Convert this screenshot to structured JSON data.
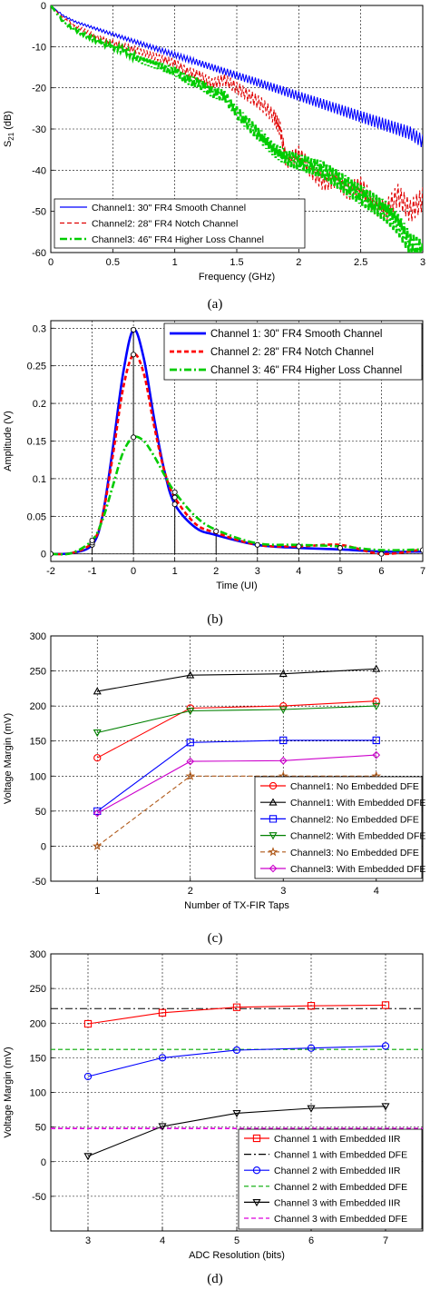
{
  "chart_data": [
    {
      "type": "line",
      "caption": "(a)",
      "xlabel": "Frequency (GHz)",
      "ylabel": "S21 (dB)",
      "ylabel_main": "S",
      "ylabel_sub": "21",
      "ylabel_unit": " (dB)",
      "xlim": [
        0,
        3
      ],
      "ylim": [
        -60,
        0
      ],
      "xticks": [
        "0",
        "0.5",
        "1",
        "1.5",
        "2",
        "2.5",
        "3"
      ],
      "yticks": [
        "0",
        "-10",
        "-20",
        "-30",
        "-40",
        "-50",
        "-60"
      ],
      "grid": true,
      "legend_position": "bottom-left",
      "series": [
        {
          "name": "Channel1: 30\" FR4 Smooth Channel",
          "color": "#0000ff",
          "style": "solid",
          "x": [
            0,
            0.1,
            0.2,
            0.3,
            0.4,
            0.5,
            0.6,
            0.7,
            0.8,
            0.9,
            1.0,
            1.1,
            1.2,
            1.3,
            1.4,
            1.5,
            1.6,
            1.7,
            1.8,
            1.9,
            2.0,
            2.1,
            2.2,
            2.3,
            2.4,
            2.5,
            2.6,
            2.7,
            2.8,
            2.9,
            3.0
          ],
          "y": [
            0,
            -2.5,
            -4,
            -5,
            -6,
            -7,
            -8,
            -9,
            -10,
            -11,
            -12,
            -13,
            -14,
            -15,
            -16,
            -17,
            -18,
            -19,
            -20,
            -21,
            -22,
            -23,
            -24,
            -25,
            -26,
            -27,
            -28,
            -29,
            -30,
            -31,
            -33
          ]
        },
        {
          "name": "Channel2: 28\" FR4 Notch Channel",
          "color": "#e00000",
          "style": "dashed",
          "x": [
            0,
            0.1,
            0.2,
            0.3,
            0.4,
            0.5,
            0.6,
            0.7,
            0.8,
            0.9,
            1.0,
            1.1,
            1.2,
            1.3,
            1.4,
            1.5,
            1.6,
            1.7,
            1.8,
            1.85,
            1.9,
            2.0,
            2.1,
            2.2,
            2.3,
            2.4,
            2.5,
            2.6,
            2.7,
            2.8,
            2.9,
            3.0
          ],
          "y": [
            0,
            -3,
            -5,
            -6.5,
            -8,
            -9,
            -10,
            -11,
            -12,
            -13,
            -14,
            -16,
            -17,
            -19,
            -18,
            -20,
            -22,
            -24,
            -27,
            -30,
            -38,
            -36,
            -40,
            -43,
            -42,
            -45,
            -44,
            -48,
            -50,
            -46,
            -50,
            -47
          ]
        },
        {
          "name": "Channel3: 46\" FR4 Higher Loss Channel",
          "color": "#00cc00",
          "style": "dashdot",
          "x": [
            0,
            0.1,
            0.2,
            0.3,
            0.4,
            0.5,
            0.6,
            0.7,
            0.8,
            0.9,
            1.0,
            1.1,
            1.2,
            1.3,
            1.4,
            1.5,
            1.6,
            1.7,
            1.8,
            1.9,
            2.0,
            2.1,
            2.2,
            2.3,
            2.4,
            2.5,
            2.6,
            2.7,
            2.8,
            2.9,
            3.0
          ],
          "y": [
            0,
            -4,
            -6,
            -7.5,
            -9,
            -10,
            -11,
            -13,
            -14,
            -15,
            -16,
            -18,
            -19,
            -21,
            -22,
            -26,
            -29,
            -32,
            -35,
            -37,
            -38,
            -39,
            -40,
            -42,
            -44,
            -46,
            -48,
            -50,
            -53,
            -58,
            -60
          ]
        }
      ]
    },
    {
      "type": "line",
      "caption": "(b)",
      "xlabel": "Time (UI)",
      "ylabel": "Amplitude (V)",
      "xlim": [
        -2,
        7
      ],
      "ylim": [
        -0.01,
        0.31
      ],
      "xticks": [
        "-2",
        "-1",
        "0",
        "1",
        "2",
        "3",
        "4",
        "5",
        "6",
        "7"
      ],
      "yticks": [
        "0",
        "0.05",
        "0.1",
        "0.15",
        "0.2",
        "0.25",
        "0.3"
      ],
      "grid": true,
      "legend_position": "top-right",
      "series": [
        {
          "name": "Channel 1: 30\" FR4 Smooth Channel",
          "color": "#0000ff",
          "style": "solid",
          "x": [
            -2,
            -1.5,
            -1,
            -0.75,
            -0.5,
            -0.25,
            0,
            0.25,
            0.5,
            0.75,
            1,
            1.5,
            2,
            3,
            4,
            5,
            6,
            7
          ],
          "y": [
            0,
            0.001,
            0.012,
            0.05,
            0.14,
            0.24,
            0.298,
            0.26,
            0.18,
            0.11,
            0.066,
            0.035,
            0.025,
            0.012,
            0.008,
            0.006,
            0.003,
            0.003
          ]
        },
        {
          "name": "Channel 2: 28\" FR4 Notch Channel",
          "color": "#ff0000",
          "style": "dashed",
          "x": [
            -2,
            -1.5,
            -1,
            -0.75,
            -0.5,
            -0.25,
            0,
            0.25,
            0.5,
            0.75,
            1,
            1.5,
            2,
            3,
            4,
            5,
            6,
            7
          ],
          "y": [
            0,
            0.001,
            0.015,
            0.05,
            0.13,
            0.22,
            0.265,
            0.24,
            0.17,
            0.11,
            0.075,
            0.04,
            0.028,
            0.012,
            0.01,
            0.012,
            0.0,
            0.006
          ]
        },
        {
          "name": "Channel 3: 46\" FR4 Higher Loss Channel",
          "color": "#00cc00",
          "style": "dashdot",
          "x": [
            -2,
            -1.5,
            -1,
            -0.75,
            -0.5,
            -0.25,
            0,
            0.25,
            0.5,
            0.75,
            1,
            1.5,
            2,
            3,
            4,
            5,
            6,
            7
          ],
          "y": [
            0,
            0.001,
            0.018,
            0.045,
            0.09,
            0.135,
            0.155,
            0.15,
            0.13,
            0.105,
            0.082,
            0.05,
            0.032,
            0.014,
            0.012,
            0.01,
            0.005,
            0.006
          ]
        }
      ],
      "cursors": [
        {
          "x": -1,
          "y": 0.015
        },
        {
          "x": 0,
          "y": 0.298
        },
        {
          "x": 1,
          "y": 0.082
        },
        {
          "x": 2,
          "y": 0.03
        },
        {
          "x": 3,
          "y": 0.012
        },
        {
          "x": 4,
          "y": 0.01
        },
        {
          "x": 5,
          "y": 0.008
        },
        {
          "x": 6,
          "y": 0.0
        },
        {
          "x": 7,
          "y": 0.005
        }
      ]
    },
    {
      "type": "line",
      "caption": "(c)",
      "xlabel": "Number of TX-FIR Taps",
      "ylabel": "Voltage Margin (mV)",
      "xlim": [
        0.5,
        4.5
      ],
      "ylim": [
        -50,
        300
      ],
      "xticks": [
        "1",
        "2",
        "3",
        "4"
      ],
      "yticks": [
        "-50",
        "0",
        "50",
        "100",
        "150",
        "200",
        "250",
        "300"
      ],
      "grid": true,
      "legend_position": "bottom-right",
      "x": [
        1,
        2,
        3,
        4
      ],
      "series": [
        {
          "name": "Channel1: No Embedded DFE",
          "color": "#ff0000",
          "style": "solid",
          "marker": "circle",
          "values": [
            126,
            197,
            200,
            207
          ]
        },
        {
          "name": "Channel1: With Embedded DFE",
          "color": "#000000",
          "style": "solid",
          "marker": "triangle-up",
          "values": [
            221,
            244,
            246,
            253
          ]
        },
        {
          "name": "Channel2: No Embedded DFE",
          "color": "#0000ff",
          "style": "solid",
          "marker": "square",
          "values": [
            50,
            148,
            151,
            151
          ]
        },
        {
          "name": "Channel2: With Embedded DFE",
          "color": "#008000",
          "style": "solid",
          "marker": "triangle-down",
          "values": [
            162,
            193,
            195,
            200
          ]
        },
        {
          "name": "Channel3: No Embedded DFE",
          "color": "#b05a1a",
          "style": "dashed",
          "marker": "star",
          "values": [
            0,
            100,
            100,
            100
          ]
        },
        {
          "name": "Channel3: With Embedded DFE",
          "color": "#cc00cc",
          "style": "solid",
          "marker": "diamond",
          "values": [
            47,
            121,
            122,
            130
          ]
        }
      ]
    },
    {
      "type": "line",
      "caption": "(d)",
      "xlabel": "ADC Resolution (bits)",
      "ylabel": "Voltage Margin (mV)",
      "xlim": [
        2.5,
        7.5
      ],
      "ylim": [
        -100,
        300
      ],
      "xticks": [
        "3",
        "4",
        "5",
        "6",
        "7"
      ],
      "yticks": [
        "-50",
        "0",
        "50",
        "100",
        "150",
        "200",
        "250",
        "300"
      ],
      "grid": true,
      "legend_position": "bottom-right",
      "x": [
        3,
        4,
        5,
        6,
        7
      ],
      "series": [
        {
          "name": "Channel 1 with Embedded IIR",
          "color": "#ff0000",
          "style": "solid",
          "marker": "square",
          "values": [
            199,
            215,
            223,
            225,
            226
          ]
        },
        {
          "name": "Channel 2 with Embedded IIR",
          "color": "#0000ff",
          "style": "solid",
          "marker": "circle",
          "values": [
            123,
            150,
            161,
            164,
            167
          ]
        },
        {
          "name": "Channel 3 with Embedded IIR",
          "color": "#000000",
          "style": "solid",
          "marker": "triangle-down",
          "values": [
            8,
            51,
            70,
            77,
            80
          ]
        }
      ],
      "reference_lines": [
        {
          "name": "Channel 1 with Embedded DFE",
          "color": "#000000",
          "style": "dashdot",
          "value": 221
        },
        {
          "name": "Channel 2 with Embedded DFE",
          "color": "#00aa00",
          "style": "dashed",
          "value": 162
        },
        {
          "name": "Channel 3 with Embedded DFE",
          "color": "#dd00dd",
          "style": "dashed",
          "value": 48
        }
      ],
      "legend_order": [
        "Channel 1 with Embedded IIR",
        "Channel 1 with Embedded DFE",
        "Channel 2 with Embedded IIR",
        "Channel 2 with Embedded DFE",
        "Channel 3 with Embedded IIR",
        "Channel 3 with Embedded DFE"
      ]
    }
  ]
}
